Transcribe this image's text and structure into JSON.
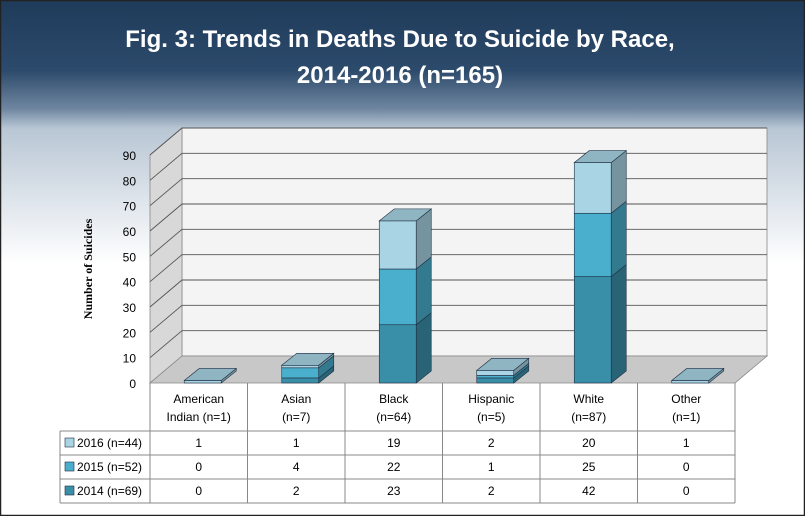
{
  "title_line1": "Fig. 3: Trends in Deaths Due to Suicide by Race,",
  "title_line2": "2014-2016 (n=165)",
  "colors": {
    "s2014": "#3a8fa8",
    "s2015": "#4aafcc",
    "s2016": "#a8d4e4",
    "border": "#1f2f44"
  },
  "chart_data": {
    "type": "bar",
    "stacked": true,
    "title": "Fig. 3: Trends in Deaths Due to Suicide by Race, 2014-2016 (n=165)",
    "ylabel": "Number of Suicides",
    "ylim": [
      0,
      90
    ],
    "yticks": [
      "0",
      "10",
      "20",
      "30",
      "40",
      "50",
      "60",
      "70",
      "80",
      "90"
    ],
    "categories": [
      {
        "line1": "American",
        "line2": "Indian     (n=1)"
      },
      {
        "line1": "Asian",
        "line2": "(n=7)"
      },
      {
        "line1": "Black",
        "line2": "(n=64)"
      },
      {
        "line1": "Hispanic",
        "line2": "(n=5)"
      },
      {
        "line1": "White",
        "line2": "(n=87)"
      },
      {
        "line1": "Other",
        "line2": "(n=1)"
      }
    ],
    "series": [
      {
        "name": "2016 (n=44)",
        "values": [
          1,
          1,
          19,
          2,
          20,
          1
        ]
      },
      {
        "name": "2015 (n=52)",
        "values": [
          0,
          4,
          22,
          1,
          25,
          0
        ]
      },
      {
        "name": "2014 (n=69)",
        "values": [
          0,
          2,
          23,
          2,
          42,
          0
        ]
      }
    ],
    "legend": "data-table"
  }
}
